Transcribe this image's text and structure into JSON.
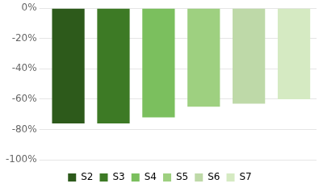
{
  "chart_data": {
    "type": "bar",
    "categories": [
      "S2",
      "S3",
      "S4",
      "S5",
      "S6",
      "S7"
    ],
    "values": [
      -76,
      -76,
      -72,
      -65,
      -63,
      -60
    ],
    "colors": [
      "#2d5a1b",
      "#3d7a25",
      "#7bbf5e",
      "#9ed080",
      "#bed9a8",
      "#d5eac2"
    ],
    "ylim": [
      -100,
      0
    ],
    "yticks": [
      {
        "value": 0,
        "label": "0%"
      },
      {
        "value": -20,
        "label": "-20%"
      },
      {
        "value": -40,
        "label": "-40%"
      },
      {
        "value": -60,
        "label": "-60%"
      },
      {
        "value": -80,
        "label": "-80%"
      },
      {
        "value": -100,
        "label": "-100%"
      }
    ],
    "grid": true,
    "legend": "bottom",
    "tick_labels": "y"
  }
}
